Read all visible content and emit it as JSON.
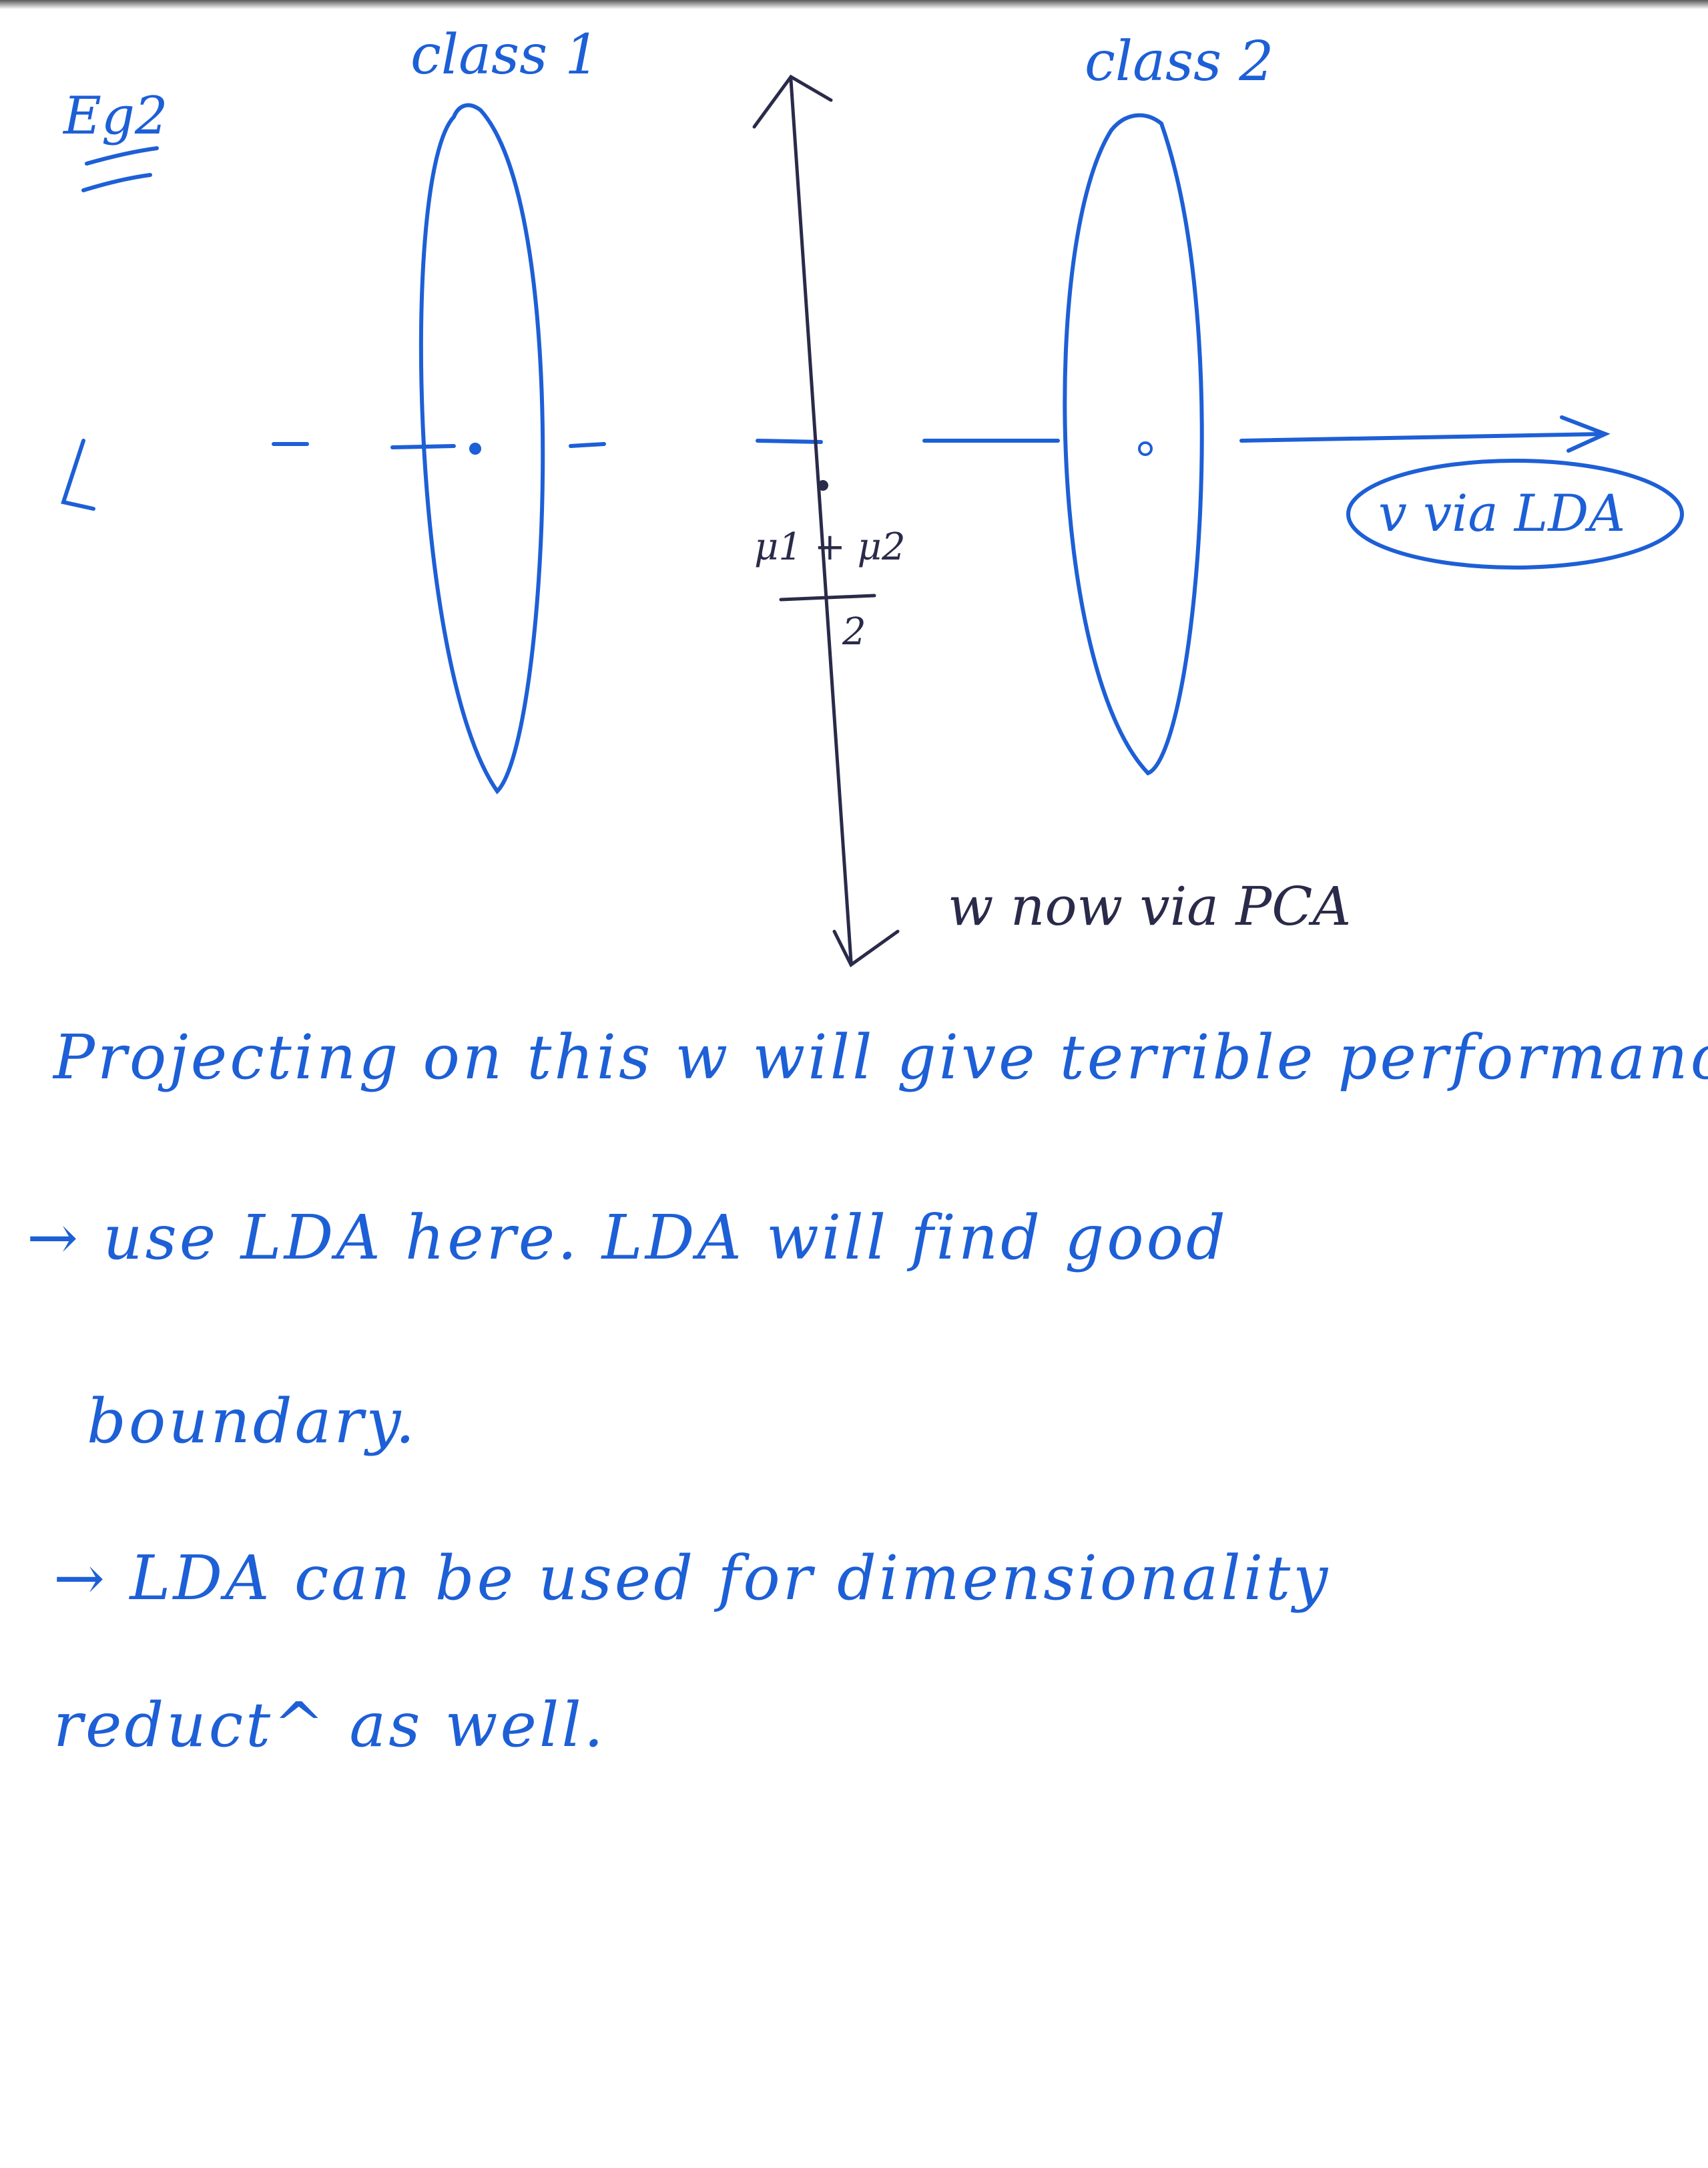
{
  "page_label": "Eg2",
  "diagram": {
    "class1_label": "class 1",
    "class2_label": "class 2",
    "midpoint_numerator": "μ1 + μ2",
    "midpoint_denominator": "2",
    "lda_direction_label": "v via LDA",
    "pca_direction_label": "w now via PCA",
    "ink_color": "#1d5fd6",
    "dark_ink_color": "#2a2a4a"
  },
  "notes": {
    "line1": "Projecting on this w will give terrible performance.",
    "line2": "→ use LDA here. LDA will find good",
    "line3": "boundary.",
    "line4": "→ LDA can be used for dimensionality",
    "line5": "reduct^ as well."
  }
}
